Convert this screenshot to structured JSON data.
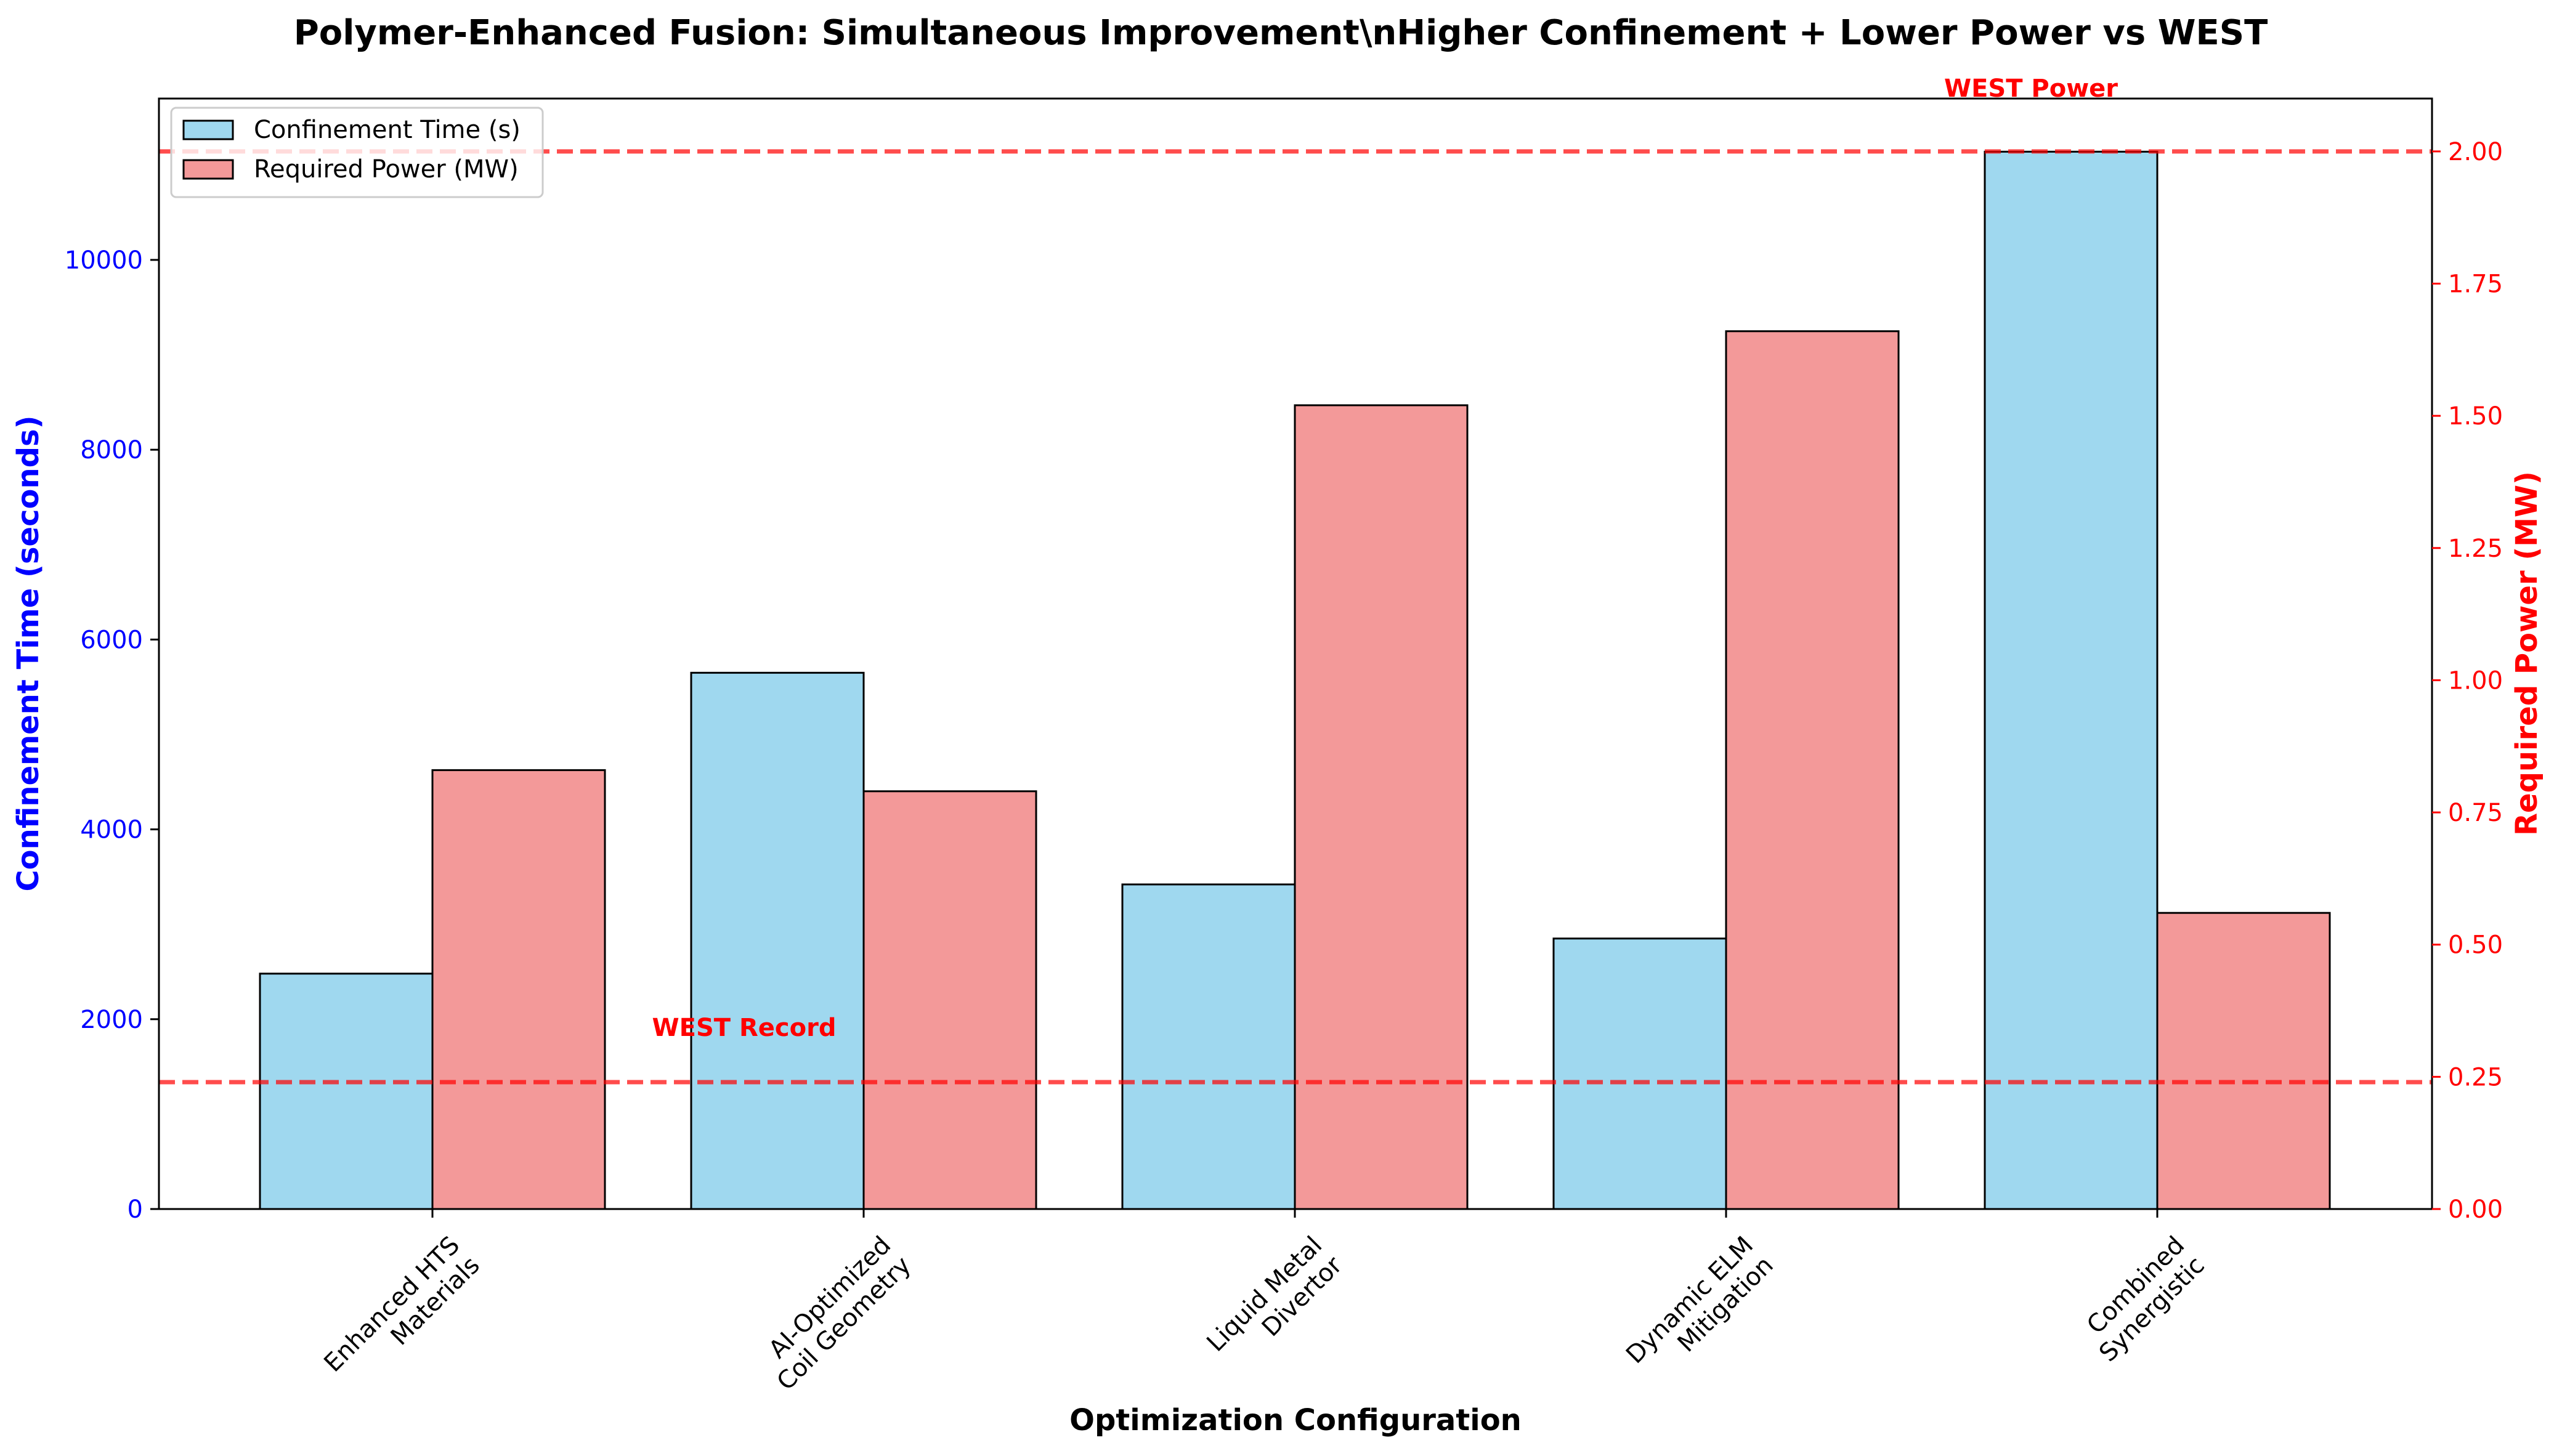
{
  "chart_data": {
    "type": "bar",
    "title": "Polymer-Enhanced Fusion: Simultaneous Improvement\\nHigher Confinement + Lower Power vs WEST",
    "xlabel": "Optimization Configuration",
    "ylabel_left": "Confinement Time (seconds)",
    "ylabel_right": "Required Power (MW)",
    "categories": [
      [
        "Enhanced HTS",
        "Materials"
      ],
      [
        "AI-Optimized",
        "Coil Geometry"
      ],
      [
        "Liquid Metal",
        "Divertor"
      ],
      [
        "Dynamic ELM",
        "Mitigation"
      ],
      [
        "Combined",
        "Synergistic"
      ]
    ],
    "series": [
      {
        "name": "Confinement Time (s)",
        "axis": "left",
        "color": "#87ceeb",
        "values": [
          2480,
          5650,
          3420,
          2850,
          11140
        ]
      },
      {
        "name": "Required Power (MW)",
        "axis": "right",
        "color": "#f08080",
        "values": [
          0.83,
          0.79,
          1.52,
          1.66,
          0.56
        ]
      }
    ],
    "ylim_left": [
      0,
      11700
    ],
    "ylim_right": [
      0,
      2.1
    ],
    "yticks_left": [
      0,
      2000,
      4000,
      6000,
      8000,
      10000
    ],
    "yticks_right": [
      0.0,
      0.25,
      0.5,
      0.75,
      1.0,
      1.25,
      1.5,
      1.75,
      2.0
    ],
    "ytick_labels_right": [
      "0.00",
      "0.25",
      "0.50",
      "0.75",
      "1.00",
      "1.25",
      "1.50",
      "1.75",
      "2.00"
    ],
    "reference_lines": [
      {
        "label": "WEST Record",
        "axis": "left",
        "value": 1337,
        "color": "#ff0000",
        "style": "dashed"
      },
      {
        "label": "WEST Power",
        "axis": "right",
        "value": 2.0,
        "color": "#ff0000",
        "style": "dashed"
      }
    ],
    "left_axis_color": "#0000ff",
    "right_axis_color": "#ff0000",
    "legend_position": "top-left",
    "grid": false
  }
}
